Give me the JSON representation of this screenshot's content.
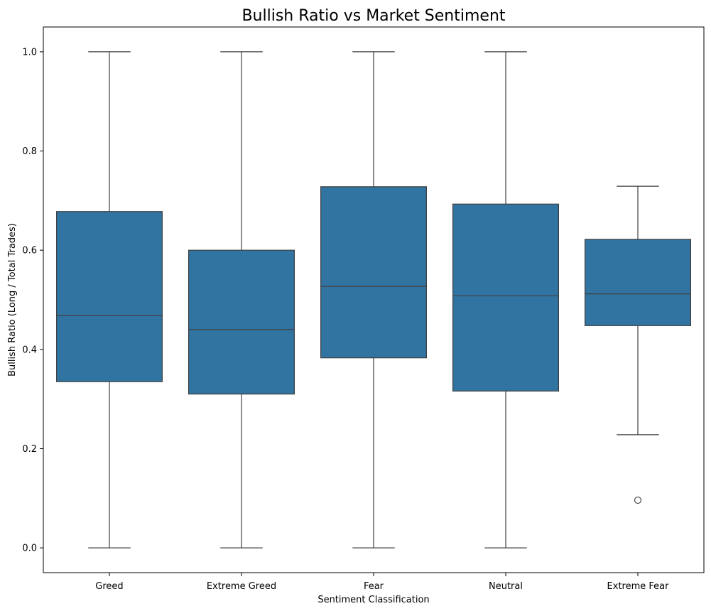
{
  "chart_data": {
    "type": "box",
    "title": "Bullish Ratio vs Market Sentiment",
    "xlabel": "Sentiment Classification",
    "ylabel": "Bullish Ratio (Long / Total Trades)",
    "ylim": [
      -0.05,
      1.05
    ],
    "yticks": [
      "0.0",
      "0.2",
      "0.4",
      "0.6",
      "0.8",
      "1.0"
    ],
    "grid": false,
    "box_color": "#3274a1",
    "line_color": "#3f3f3f",
    "categories": [
      "Greed",
      "Extreme Greed",
      "Fear",
      "Neutral",
      "Extreme Fear"
    ],
    "boxes": [
      {
        "category": "Greed",
        "whisker_low": 0.0,
        "q1": 0.335,
        "median": 0.468,
        "q3": 0.678,
        "whisker_high": 1.0,
        "outliers": []
      },
      {
        "category": "Extreme Greed",
        "whisker_low": 0.0,
        "q1": 0.31,
        "median": 0.44,
        "q3": 0.6,
        "whisker_high": 1.0,
        "outliers": []
      },
      {
        "category": "Fear",
        "whisker_low": 0.0,
        "q1": 0.383,
        "median": 0.527,
        "q3": 0.728,
        "whisker_high": 1.0,
        "outliers": []
      },
      {
        "category": "Neutral",
        "whisker_low": 0.0,
        "q1": 0.316,
        "median": 0.508,
        "q3": 0.693,
        "whisker_high": 1.0,
        "outliers": []
      },
      {
        "category": "Extreme Fear",
        "whisker_low": 0.228,
        "q1": 0.448,
        "median": 0.512,
        "q3": 0.622,
        "whisker_high": 0.729,
        "outliers": [
          0.096
        ]
      }
    ]
  }
}
